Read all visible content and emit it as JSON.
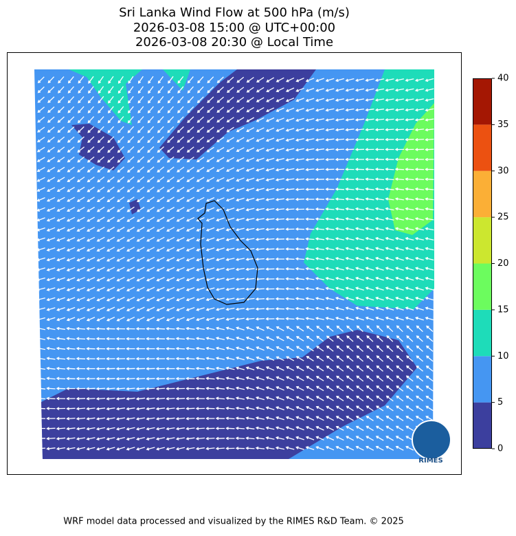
{
  "header": {
    "title_lines": [
      "Sri Lanka Wind Flow at 500 hPa (m/s)",
      "2026-03-08 15:00 @ UTC+00:00",
      "2026-03-08 20:30 @ Local Time"
    ]
  },
  "colorbar": {
    "levels": [
      0,
      5,
      10,
      15,
      20,
      25,
      30,
      35,
      40
    ],
    "colors": [
      "#3c3f9e",
      "#4596f2",
      "#1edcb9",
      "#6cfc5e",
      "#cce72f",
      "#fbaf36",
      "#ec5111",
      "#a41703"
    ]
  },
  "logo": {
    "text": "RIMES"
  },
  "footer": {
    "text": "WRF model data processed and visualized by the RIMES R&D Team. © 2025"
  }
}
